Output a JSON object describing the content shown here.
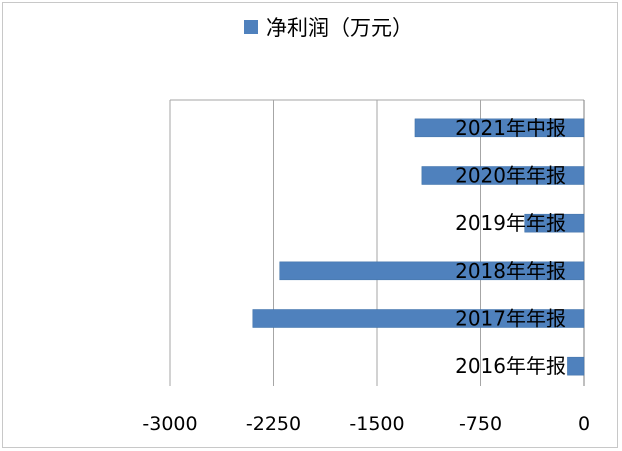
{
  "chart_data": {
    "type": "bar",
    "orientation": "horizontal",
    "categories": [
      "2021年中报",
      "2020年年报",
      "2019年年报",
      "2018年年报",
      "2017年年报",
      "2016年年报"
    ],
    "series": [
      {
        "name": "净利润（万元）",
        "values": [
          -1225,
          -1175,
          -430,
          -2205,
          -2400,
          -120
        ],
        "color": "#4f81bd"
      }
    ],
    "xlim": [
      -3000,
      0
    ],
    "xticks": [
      -3000,
      -2250,
      -1500,
      -750,
      0
    ],
    "tick_labels": [
      "-3000",
      "-2250",
      "-1500",
      "-750",
      "0"
    ],
    "grid": "vertical",
    "legend": "top"
  }
}
